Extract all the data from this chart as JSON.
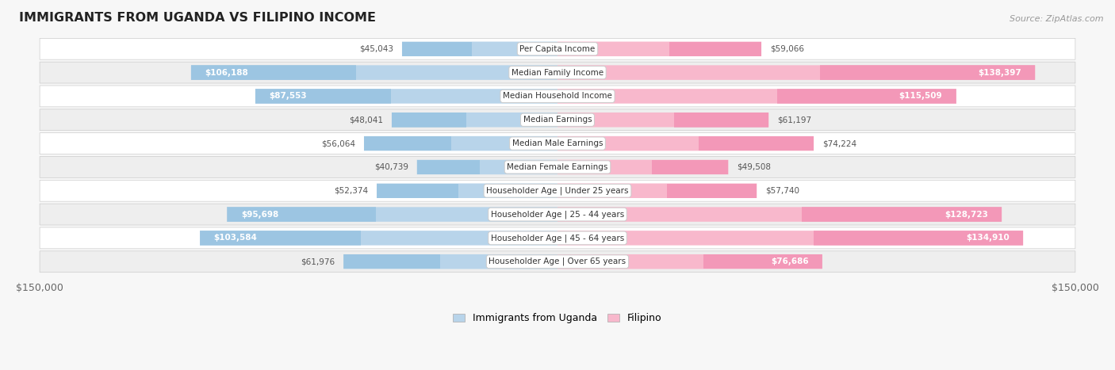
{
  "title": "IMMIGRANTS FROM UGANDA VS FILIPINO INCOME",
  "source": "Source: ZipAtlas.com",
  "categories": [
    "Per Capita Income",
    "Median Family Income",
    "Median Household Income",
    "Median Earnings",
    "Median Male Earnings",
    "Median Female Earnings",
    "Householder Age | Under 25 years",
    "Householder Age | 25 - 44 years",
    "Householder Age | 45 - 64 years",
    "Householder Age | Over 65 years"
  ],
  "uganda_values": [
    45043,
    106188,
    87553,
    48041,
    56064,
    40739,
    52374,
    95698,
    103584,
    61976
  ],
  "filipino_values": [
    59066,
    138397,
    115509,
    61197,
    74224,
    49508,
    57740,
    128723,
    134910,
    76686
  ],
  "uganda_color_light": "#b8d4ea",
  "uganda_color_dark": "#6aaad4",
  "filipino_color_light": "#f8b8cc",
  "filipino_color_dark": "#e8508a",
  "max_value": 150000,
  "background_color": "#f7f7f7",
  "row_bg_even": "#ffffff",
  "row_bg_odd": "#eeeeee",
  "label_color_inside": "#ffffff",
  "label_color_outside": "#666666"
}
